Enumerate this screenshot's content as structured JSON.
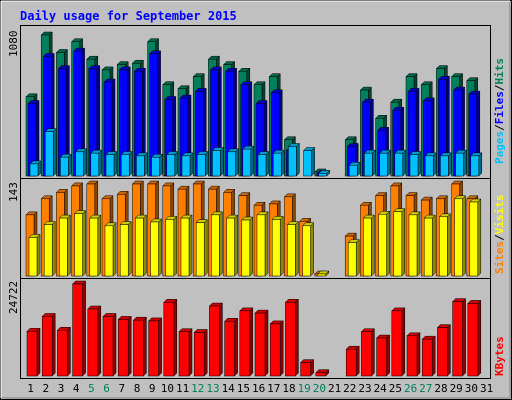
{
  "title": "Daily usage for September 2015",
  "colors": {
    "frame_bg": "#c0c0c0",
    "title": "#0000ff",
    "hits": "#00805c",
    "files": "#0000ff",
    "pages": "#00c0ff",
    "visits": "#ffff00",
    "sites": "#ff8000",
    "kbytes": "#ff0000",
    "weekday_label": "#000000",
    "weekend_label": "#00805c"
  },
  "legend": {
    "top": [
      {
        "text": "Pages",
        "color": "#00c0ff"
      },
      {
        "text": "/",
        "color": "#000000"
      },
      {
        "text": "Files",
        "color": "#0000ff"
      },
      {
        "text": "/",
        "color": "#000000"
      },
      {
        "text": "Hits",
        "color": "#00805c"
      }
    ],
    "middle": [
      {
        "text": "Sites",
        "color": "#ff8000"
      },
      {
        "text": "/",
        "color": "#000000"
      },
      {
        "text": "Visits",
        "color": "#ffff00"
      }
    ],
    "bottom": [
      {
        "text": "KBytes",
        "color": "#ff0000"
      }
    ]
  },
  "chart_data": {
    "type": "bar",
    "title": "Daily usage for September 2015",
    "categories": [
      "1",
      "2",
      "3",
      "4",
      "5",
      "6",
      "7",
      "8",
      "9",
      "10",
      "11",
      "12",
      "13",
      "14",
      "15",
      "16",
      "17",
      "18",
      "19",
      "20",
      "21",
      "22",
      "23",
      "24",
      "25",
      "26",
      "27",
      "28",
      "29",
      "30",
      "31"
    ],
    "weekend_days": [
      "5",
      "6",
      "12",
      "13",
      "19",
      "20",
      "26",
      "27"
    ],
    "panels": [
      {
        "name": "hits-files-pages",
        "axis_max_label": "1080",
        "ymax": 1080,
        "series": [
          {
            "name": "Hits",
            "color": "#00805c",
            "values": [
              590,
              1050,
              920,
              1000,
              870,
              790,
              830,
              840,
              1000,
              680,
              650,
              740,
              870,
              830,
              780,
              680,
              740,
              270,
              0,
              30,
              0,
              270,
              640,
              430,
              550,
              740,
              680,
              800,
              740,
              710,
              null
            ]
          },
          {
            "name": "Files",
            "color": "#0000ff",
            "values": [
              540,
              890,
              800,
              930,
              800,
              700,
              790,
              780,
              910,
              570,
              580,
              630,
              790,
              780,
              680,
              540,
              620,
              190,
              0,
              20,
              0,
              220,
              550,
              340,
              490,
              630,
              560,
              720,
              640,
              610,
              null
            ]
          },
          {
            "name": "Pages",
            "color": "#00c0ff",
            "values": [
              90,
              330,
              140,
              180,
              170,
              160,
              160,
              150,
              140,
              160,
              150,
              160,
              190,
              180,
              200,
              160,
              170,
              220,
              190,
              20,
              0,
              80,
              170,
              170,
              170,
              160,
              150,
              150,
              170,
              150,
              null
            ]
          }
        ]
      },
      {
        "name": "sites-visits",
        "axis_max_label": "143",
        "ymax": 143,
        "series": [
          {
            "name": "Sites",
            "color": "#ff8000",
            "values": [
              95,
              120,
              130,
              140,
              145,
              120,
              127,
              160,
              155,
              140,
              135,
              145,
              135,
              130,
              125,
              110,
              112,
              123,
              85,
              3,
              0,
              62,
              110,
              125,
              140,
              125,
              118,
              120,
              152,
              120,
              null
            ]
          },
          {
            "name": "Visits",
            "color": "#ffff00",
            "values": [
              60,
              80,
              90,
              97,
              90,
              78,
              80,
              90,
              84,
              88,
              90,
              83,
              95,
              90,
              87,
              95,
              88,
              80,
              78,
              3,
              0,
              52,
              90,
              96,
              100,
              95,
              90,
              92,
              120,
              115,
              null
            ]
          }
        ]
      },
      {
        "name": "kbytes",
        "axis_max_label": "24722",
        "ymax": 24722,
        "series": [
          {
            "name": "KBytes",
            "color": "#ff0000",
            "values": [
              12000,
              16000,
              12300,
              24800,
              18000,
              16000,
              15200,
              15000,
              14800,
              19800,
              11900,
              11700,
              18800,
              14700,
              17500,
              16900,
              14000,
              19800,
              3600,
              900,
              0,
              7200,
              11900,
              10200,
              17500,
              10800,
              9900,
              13000,
              20000,
              19500,
              null
            ]
          }
        ]
      }
    ]
  }
}
